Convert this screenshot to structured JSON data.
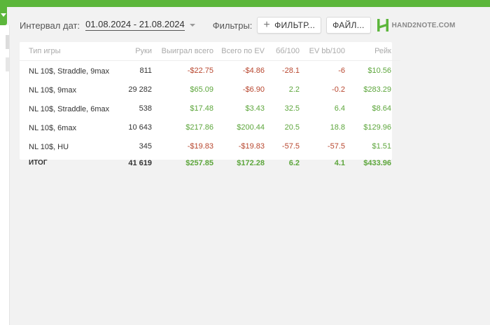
{
  "filterbar": {
    "interval_label": "Интервал дат:",
    "date_range": "01.08.2024 - 21.08.2024",
    "filters_label": "Фильтры:",
    "filter_button": "ФИЛЬТР...",
    "files_button": "ФАЙЛ...",
    "logo_text": "HAND2NOTE.COM"
  },
  "colors": {
    "accent": "#5cb63b",
    "positive": "#5da63c",
    "negative": "#b8472f"
  },
  "table": {
    "headers": [
      "Тип игры",
      "Руки",
      "Выиграл всего",
      "Всего по EV",
      "бб/100",
      "EV bb/100",
      "Рейк"
    ],
    "rows": [
      {
        "cells": [
          "NL 10$, Straddle, 9max",
          "811",
          "-$22.75",
          "-$4.86",
          "-28.1",
          "-6",
          "$10.56"
        ]
      },
      {
        "cells": [
          "NL 10$, 9max",
          "29 282",
          "$65.09",
          "-$6.90",
          "2.2",
          "-0.2",
          "$283.29"
        ]
      },
      {
        "cells": [
          "NL 10$, Straddle, 6max",
          "538",
          "$17.48",
          "$3.43",
          "32.5",
          "6.4",
          "$8.64"
        ]
      },
      {
        "cells": [
          "NL 10$, 6max",
          "10 643",
          "$217.86",
          "$200.44",
          "20.5",
          "18.8",
          "$129.96"
        ]
      },
      {
        "cells": [
          "NL 10$, HU",
          "345",
          "-$19.83",
          "-$19.83",
          "-57.5",
          "-57.5",
          "$1.51"
        ]
      }
    ],
    "total": {
      "cells": [
        "ИТОГ",
        "41 619",
        "$257.85",
        "$172.28",
        "6.2",
        "4.1",
        "$433.96"
      ]
    }
  }
}
